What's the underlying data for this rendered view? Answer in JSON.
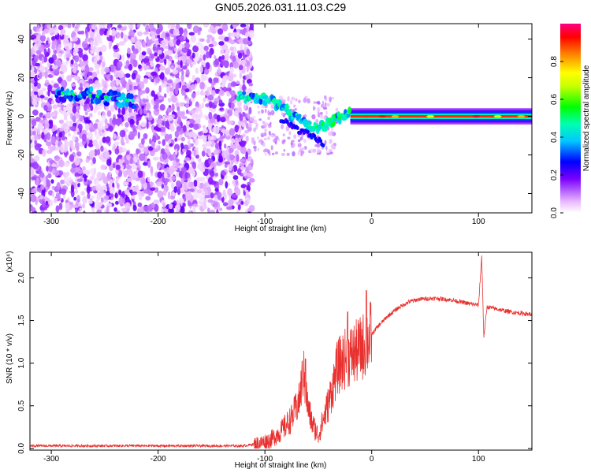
{
  "title": "GN05.2026.031.11.03.C29",
  "chart_data": [
    {
      "type": "heatmap",
      "xlabel": "Height of straight line (km)",
      "ylabel": "Frequency (Hz)",
      "xlim": [
        -320,
        150
      ],
      "ylim": [
        -50,
        48
      ],
      "xticks": [
        -300,
        -200,
        -100,
        0,
        100
      ],
      "yticks": [
        -40,
        -20,
        0,
        20,
        40
      ],
      "colorbar": {
        "label": "Normalized spectral amplitude",
        "range": [
          0,
          1
        ],
        "ticks": [
          0.0,
          0.2,
          0.4,
          0.6,
          0.8
        ]
      },
      "ridge": {
        "x": [
          -290,
          -270,
          -250,
          -235,
          -225,
          -120,
          -105,
          -95,
          -85,
          -75,
          -65,
          -58,
          -50,
          -40,
          -30,
          -22,
          -15,
          -8,
          0,
          20,
          60,
          95,
          100,
          110,
          150
        ],
        "y": [
          12,
          11,
          10,
          9,
          8,
          10,
          10,
          9,
          5,
          1,
          -3,
          -5,
          -6,
          -3,
          -1,
          2,
          1,
          0,
          0,
          0,
          0,
          0,
          1,
          0,
          0
        ]
      }
    },
    {
      "type": "line",
      "xlabel": "Height of straight line (km)",
      "ylabel": "SNR (10 * v/v)",
      "y_multiplier": "(x10⁴)",
      "xlim": [
        -320,
        150
      ],
      "ylim": [
        -0.02,
        2.3
      ],
      "xticks": [
        -300,
        -200,
        -100,
        0,
        100
      ],
      "yticks": [
        0.0,
        0.5,
        1.0,
        1.5,
        2.0
      ],
      "ytick_labels": [
        "0.0",
        "0.5",
        "1.0",
        "1.5",
        "2.0"
      ],
      "series": [
        {
          "x": [
            -320,
            -200,
            -120,
            -105,
            -95,
            -85,
            -75,
            -68,
            -64,
            -60,
            -56,
            -50,
            -40,
            -32,
            -25,
            -18,
            -12,
            -8,
            -2,
            5,
            15,
            25,
            35,
            45,
            60,
            75,
            90,
            100,
            103,
            105,
            108,
            115,
            130,
            150
          ],
          "y": [
            0.03,
            0.03,
            0.03,
            0.06,
            0.1,
            0.2,
            0.35,
            0.55,
            0.9,
            0.5,
            0.3,
            0.15,
            0.55,
            0.95,
            1.05,
            1.1,
            1.15,
            1.2,
            1.3,
            1.42,
            1.55,
            1.65,
            1.72,
            1.75,
            1.76,
            1.74,
            1.7,
            1.68,
            2.25,
            1.3,
            1.66,
            1.64,
            1.6,
            1.57
          ]
        }
      ]
    }
  ]
}
